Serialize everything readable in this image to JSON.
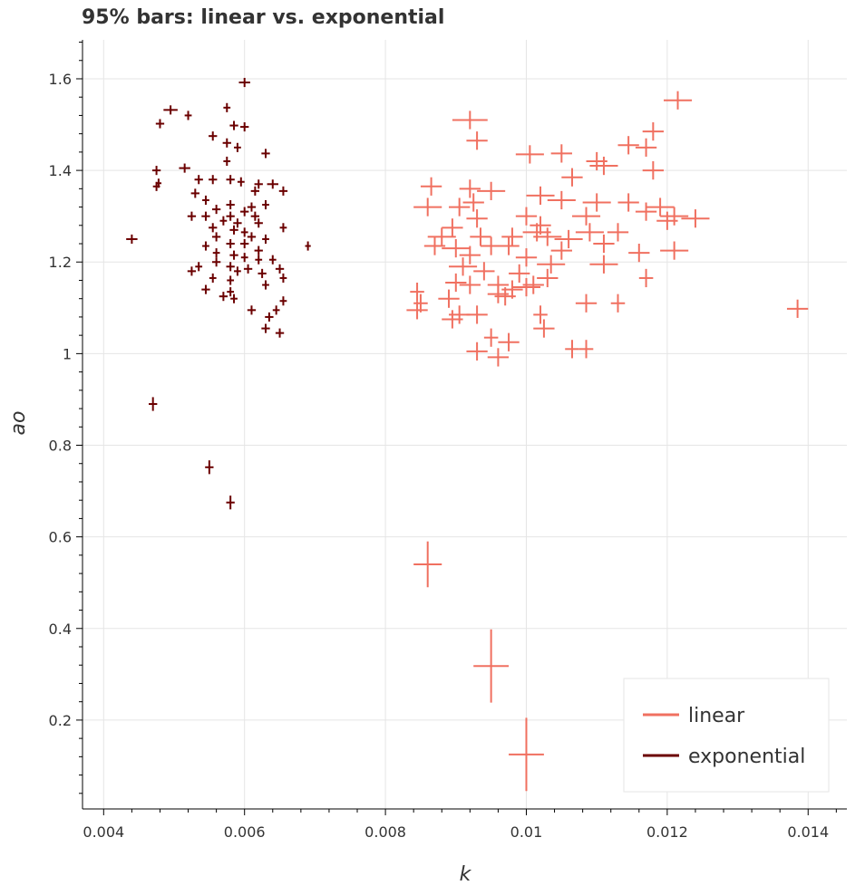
{
  "chart_data": {
    "type": "scatter",
    "title": "95% bars: linear vs. exponential",
    "xlabel": "k",
    "ylabel": "ao",
    "xlim": [
      0.0037,
      0.01455
    ],
    "ylim": [
      0.006,
      1.685
    ],
    "x_ticks": [
      0.004,
      0.006,
      0.008,
      0.01,
      0.012,
      0.014
    ],
    "x_tick_labels": [
      "0.004",
      "0.006",
      "0.008",
      "0.01",
      "0.012",
      "0.014"
    ],
    "y_ticks": [
      0.2,
      0.4,
      0.6,
      0.8,
      1.0,
      1.2,
      1.4,
      1.6
    ],
    "y_tick_labels": [
      "0.2",
      "0.4",
      "0.6",
      "0.8",
      "1",
      "1.2",
      "1.4",
      "1.6"
    ],
    "grid": true,
    "legend_position": "bottom-right",
    "series": [
      {
        "name": "linear",
        "color": "#f07060",
        "points": [
          [
            0.0092,
            1.51,
            0.00025,
            0.02
          ],
          [
            0.01215,
            1.553,
            0.0002,
            0.02
          ],
          [
            0.0093,
            1.465,
            0.00015,
            0.02
          ],
          [
            0.0118,
            1.485,
            0.00015,
            0.02
          ],
          [
            0.0105,
            1.437,
            0.00015,
            0.02
          ],
          [
            0.01005,
            1.435,
            0.0002,
            0.02
          ],
          [
            0.01145,
            1.455,
            0.00015,
            0.02
          ],
          [
            0.0117,
            1.45,
            0.00015,
            0.02
          ],
          [
            0.011,
            1.42,
            0.00015,
            0.02
          ],
          [
            0.0111,
            1.41,
            0.0002,
            0.02
          ],
          [
            0.0118,
            1.4,
            0.00015,
            0.02
          ],
          [
            0.01065,
            1.385,
            0.00015,
            0.02
          ],
          [
            0.00865,
            1.365,
            0.00015,
            0.02
          ],
          [
            0.0092,
            1.36,
            0.00015,
            0.02
          ],
          [
            0.0095,
            1.355,
            0.0002,
            0.02
          ],
          [
            0.0102,
            1.345,
            0.0002,
            0.02
          ],
          [
            0.0105,
            1.335,
            0.0002,
            0.02
          ],
          [
            0.00925,
            1.33,
            0.00015,
            0.02
          ],
          [
            0.0086,
            1.32,
            0.0002,
            0.02
          ],
          [
            0.00905,
            1.32,
            0.00015,
            0.02
          ],
          [
            0.011,
            1.33,
            0.0002,
            0.02
          ],
          [
            0.01145,
            1.33,
            0.00015,
            0.02
          ],
          [
            0.0119,
            1.32,
            0.0002,
            0.02
          ],
          [
            0.0117,
            1.31,
            0.00015,
            0.02
          ],
          [
            0.0121,
            1.3,
            0.0002,
            0.02
          ],
          [
            0.0124,
            1.295,
            0.0002,
            0.02
          ],
          [
            0.01085,
            1.3,
            0.0002,
            0.02
          ],
          [
            0.01,
            1.3,
            0.00015,
            0.02
          ],
          [
            0.0093,
            1.295,
            0.00015,
            0.02
          ],
          [
            0.00895,
            1.275,
            0.00015,
            0.02
          ],
          [
            0.0102,
            1.28,
            0.00015,
            0.02
          ],
          [
            0.01015,
            1.265,
            0.0002,
            0.02
          ],
          [
            0.0103,
            1.255,
            0.0002,
            0.02
          ],
          [
            0.0109,
            1.265,
            0.0002,
            0.02
          ],
          [
            0.0113,
            1.265,
            0.00015,
            0.02
          ],
          [
            0.012,
            1.29,
            0.00015,
            0.02
          ],
          [
            0.0088,
            1.255,
            0.0002,
            0.02
          ],
          [
            0.00935,
            1.255,
            0.00015,
            0.02
          ],
          [
            0.0098,
            1.255,
            0.00015,
            0.02
          ],
          [
            0.0106,
            1.25,
            0.0002,
            0.02
          ],
          [
            0.0111,
            1.24,
            0.00015,
            0.02
          ],
          [
            0.0087,
            1.235,
            0.00015,
            0.02
          ],
          [
            0.009,
            1.23,
            0.0002,
            0.02
          ],
          [
            0.0095,
            1.235,
            0.00015,
            0.02
          ],
          [
            0.00975,
            1.235,
            0.00015,
            0.02
          ],
          [
            0.0105,
            1.225,
            0.00015,
            0.02
          ],
          [
            0.0116,
            1.22,
            0.00015,
            0.02
          ],
          [
            0.0121,
            1.225,
            0.0002,
            0.02
          ],
          [
            0.0092,
            1.215,
            0.00015,
            0.02
          ],
          [
            0.01,
            1.21,
            0.00015,
            0.02
          ],
          [
            0.0111,
            1.195,
            0.0002,
            0.02
          ],
          [
            0.01035,
            1.195,
            0.0002,
            0.02
          ],
          [
            0.0091,
            1.19,
            0.0002,
            0.02
          ],
          [
            0.0094,
            1.18,
            0.00015,
            0.02
          ],
          [
            0.0099,
            1.175,
            0.00015,
            0.02
          ],
          [
            0.0103,
            1.165,
            0.00015,
            0.02
          ],
          [
            0.0117,
            1.165,
            0.0001,
            0.02
          ],
          [
            0.009,
            1.155,
            0.00015,
            0.02
          ],
          [
            0.0092,
            1.15,
            0.00015,
            0.02
          ],
          [
            0.0096,
            1.15,
            0.00015,
            0.02
          ],
          [
            0.0101,
            1.15,
            0.00015,
            0.02
          ],
          [
            0.0098,
            1.14,
            0.00015,
            0.02
          ],
          [
            0.01,
            1.145,
            0.0002,
            0.02
          ],
          [
            0.00845,
            1.135,
            0.0001,
            0.02
          ],
          [
            0.0096,
            1.13,
            0.00015,
            0.02
          ],
          [
            0.0097,
            1.125,
            0.00015,
            0.02
          ],
          [
            0.0089,
            1.12,
            0.00015,
            0.02
          ],
          [
            0.0085,
            1.11,
            0.0001,
            0.02
          ],
          [
            0.01085,
            1.11,
            0.00015,
            0.02
          ],
          [
            0.0113,
            1.11,
            0.0001,
            0.02
          ],
          [
            0.00845,
            1.095,
            0.00015,
            0.02
          ],
          [
            0.00905,
            1.085,
            0.00015,
            0.02
          ],
          [
            0.0093,
            1.085,
            0.00015,
            0.02
          ],
          [
            0.00895,
            1.075,
            0.00015,
            0.02
          ],
          [
            0.0102,
            1.085,
            0.0001,
            0.02
          ],
          [
            0.01385,
            1.098,
            0.00015,
            0.02
          ],
          [
            0.01025,
            1.055,
            0.00015,
            0.02
          ],
          [
            0.0095,
            1.035,
            0.0001,
            0.02
          ],
          [
            0.00975,
            1.025,
            0.00015,
            0.02
          ],
          [
            0.0093,
            1.005,
            0.00015,
            0.02
          ],
          [
            0.0096,
            0.992,
            0.00015,
            0.02
          ],
          [
            0.01065,
            1.01,
            0.0001,
            0.02
          ],
          [
            0.01085,
            1.01,
            0.0001,
            0.02
          ],
          [
            0.0086,
            0.54,
            0.0002,
            0.05
          ],
          [
            0.0095,
            0.318,
            0.00025,
            0.08
          ],
          [
            0.01,
            0.125,
            0.00025,
            0.08
          ]
        ]
      },
      {
        "name": "exponential",
        "color": "#6b0000",
        "points": [
          [
            0.006,
            1.592,
            8e-05,
            0.01
          ],
          [
            0.00495,
            1.532,
            0.0001,
            0.01
          ],
          [
            0.00575,
            1.537,
            5e-05,
            0.01
          ],
          [
            0.0048,
            1.502,
            6e-05,
            0.01
          ],
          [
            0.0052,
            1.52,
            5e-05,
            0.01
          ],
          [
            0.00585,
            1.498,
            6e-05,
            0.01
          ],
          [
            0.006,
            1.495,
            6e-05,
            0.01
          ],
          [
            0.00555,
            1.475,
            6e-05,
            0.01
          ],
          [
            0.00575,
            1.46,
            6e-05,
            0.01
          ],
          [
            0.0059,
            1.45,
            5e-05,
            0.01
          ],
          [
            0.0063,
            1.437,
            6e-05,
            0.01
          ],
          [
            0.00575,
            1.42,
            5e-05,
            0.01
          ],
          [
            0.00515,
            1.405,
            8e-05,
            0.01
          ],
          [
            0.00475,
            1.4,
            6e-05,
            0.01
          ],
          [
            0.00478,
            1.372,
            4e-05,
            0.01
          ],
          [
            0.00475,
            1.365,
            5e-05,
            0.01
          ],
          [
            0.00535,
            1.38,
            6e-05,
            0.01
          ],
          [
            0.00555,
            1.38,
            6e-05,
            0.01
          ],
          [
            0.0058,
            1.38,
            6e-05,
            0.01
          ],
          [
            0.00595,
            1.375,
            5e-05,
            0.01
          ],
          [
            0.0062,
            1.37,
            6e-05,
            0.01
          ],
          [
            0.0064,
            1.37,
            8e-05,
            0.01
          ],
          [
            0.00655,
            1.355,
            6e-05,
            0.01
          ],
          [
            0.00615,
            1.355,
            6e-05,
            0.01
          ],
          [
            0.0053,
            1.35,
            6e-05,
            0.01
          ],
          [
            0.00545,
            1.335,
            5e-05,
            0.01
          ],
          [
            0.0058,
            1.325,
            6e-05,
            0.01
          ],
          [
            0.0061,
            1.32,
            6e-05,
            0.01
          ],
          [
            0.0063,
            1.325,
            5e-05,
            0.01
          ],
          [
            0.0056,
            1.315,
            6e-05,
            0.01
          ],
          [
            0.006,
            1.31,
            6e-05,
            0.01
          ],
          [
            0.00525,
            1.3,
            6e-05,
            0.01
          ],
          [
            0.00545,
            1.3,
            6e-05,
            0.01
          ],
          [
            0.0058,
            1.3,
            6e-05,
            0.01
          ],
          [
            0.00615,
            1.3,
            6e-05,
            0.01
          ],
          [
            0.0057,
            1.29,
            5e-05,
            0.01
          ],
          [
            0.0059,
            1.285,
            6e-05,
            0.01
          ],
          [
            0.0062,
            1.285,
            6e-05,
            0.01
          ],
          [
            0.00655,
            1.275,
            5e-05,
            0.01
          ],
          [
            0.00555,
            1.275,
            6e-05,
            0.01
          ],
          [
            0.00585,
            1.27,
            6e-05,
            0.01
          ],
          [
            0.006,
            1.265,
            5e-05,
            0.01
          ],
          [
            0.0056,
            1.255,
            6e-05,
            0.01
          ],
          [
            0.0061,
            1.255,
            6e-05,
            0.01
          ],
          [
            0.0044,
            1.25,
            8e-05,
            0.01
          ],
          [
            0.0063,
            1.25,
            5e-05,
            0.01
          ],
          [
            0.0058,
            1.24,
            6e-05,
            0.01
          ],
          [
            0.006,
            1.24,
            6e-05,
            0.01
          ],
          [
            0.00545,
            1.235,
            5e-05,
            0.01
          ],
          [
            0.0069,
            1.235,
            4e-05,
            0.01
          ],
          [
            0.0062,
            1.225,
            6e-05,
            0.01
          ],
          [
            0.0056,
            1.22,
            5e-05,
            0.01
          ],
          [
            0.00585,
            1.215,
            6e-05,
            0.01
          ],
          [
            0.006,
            1.21,
            5e-05,
            0.01
          ],
          [
            0.0062,
            1.205,
            5e-05,
            0.01
          ],
          [
            0.0064,
            1.205,
            5e-05,
            0.01
          ],
          [
            0.0056,
            1.2,
            6e-05,
            0.01
          ],
          [
            0.00535,
            1.19,
            5e-05,
            0.01
          ],
          [
            0.0058,
            1.19,
            6e-05,
            0.01
          ],
          [
            0.00605,
            1.185,
            6e-05,
            0.01
          ],
          [
            0.0065,
            1.185,
            6e-05,
            0.01
          ],
          [
            0.00525,
            1.18,
            6e-05,
            0.01
          ],
          [
            0.0059,
            1.18,
            5e-05,
            0.01
          ],
          [
            0.00625,
            1.175,
            6e-05,
            0.01
          ],
          [
            0.00555,
            1.165,
            5e-05,
            0.01
          ],
          [
            0.00655,
            1.165,
            5e-05,
            0.01
          ],
          [
            0.0058,
            1.16,
            5e-05,
            0.01
          ],
          [
            0.0063,
            1.15,
            5e-05,
            0.01
          ],
          [
            0.00545,
            1.14,
            6e-05,
            0.01
          ],
          [
            0.0058,
            1.135,
            5e-05,
            0.01
          ],
          [
            0.0057,
            1.125,
            6e-05,
            0.01
          ],
          [
            0.00585,
            1.12,
            5e-05,
            0.01
          ],
          [
            0.00655,
            1.115,
            5e-05,
            0.01
          ],
          [
            0.0061,
            1.095,
            6e-05,
            0.01
          ],
          [
            0.00645,
            1.095,
            5e-05,
            0.01
          ],
          [
            0.00635,
            1.08,
            6e-05,
            0.01
          ],
          [
            0.0063,
            1.055,
            6e-05,
            0.01
          ],
          [
            0.0065,
            1.045,
            6e-05,
            0.01
          ],
          [
            0.0047,
            0.89,
            6e-05,
            0.015
          ],
          [
            0.0055,
            0.752,
            6e-05,
            0.015
          ],
          [
            0.0058,
            0.675,
            6e-05,
            0.015
          ]
        ]
      }
    ]
  }
}
